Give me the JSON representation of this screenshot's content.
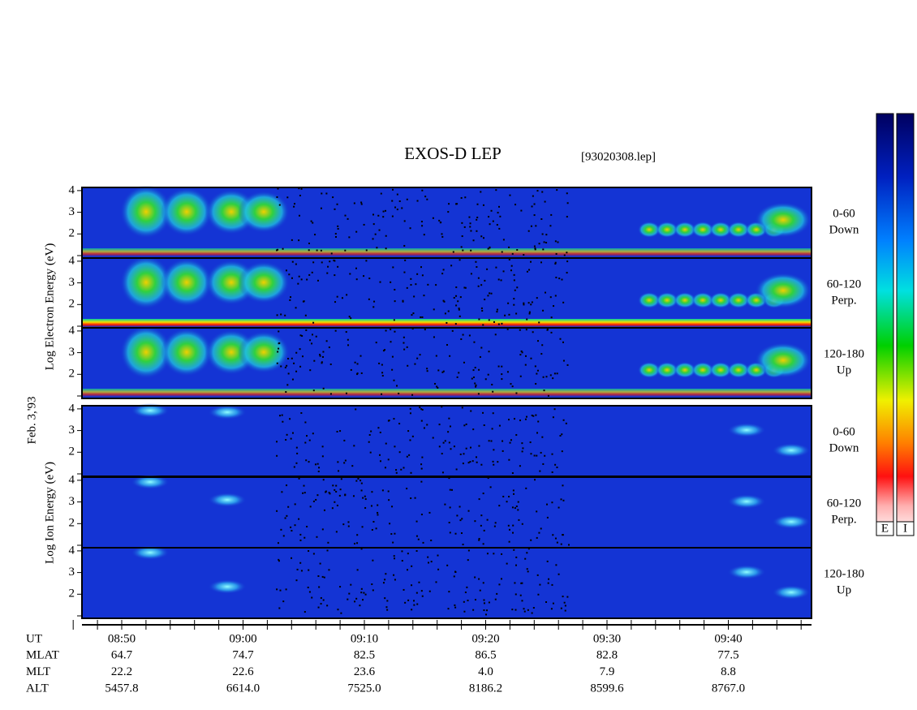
{
  "title": "EXOS-D LEP",
  "file": "[93020308.lep]",
  "date": "Feb. 3,'93",
  "electron": {
    "axis_label": "Log  Electron  Energy (eV)",
    "panels": [
      [
        "0-60",
        "Down"
      ],
      [
        "60-120",
        "Perp."
      ],
      [
        "120-180",
        "Up"
      ]
    ]
  },
  "ion": {
    "axis_label": "Log  Ion  Energy (eV)",
    "panels": [
      [
        "0-60",
        "Down"
      ],
      [
        "60-120",
        "Perp."
      ],
      [
        "120-180",
        "Up"
      ]
    ]
  },
  "yticks": [
    "2",
    "3",
    "4"
  ],
  "time_axis": {
    "label": "UT",
    "ticks": [
      "08:50",
      "09:00",
      "09:10",
      "09:20",
      "09:30",
      "09:40"
    ]
  },
  "ephemeris": [
    {
      "label": "MLAT",
      "values": [
        "64.7",
        "74.7",
        "82.5",
        "86.5",
        "82.8",
        "77.5"
      ]
    },
    {
      "label": "MLT",
      "values": [
        "22.2",
        "22.6",
        "23.6",
        "4.0",
        "7.9",
        "8.8"
      ]
    },
    {
      "label": "ALT",
      "values": [
        "5457.8",
        "6614.0",
        "7525.0",
        "8186.2",
        "8599.6",
        "8767.0"
      ]
    }
  ],
  "colorbars": [
    "E",
    "I"
  ]
}
